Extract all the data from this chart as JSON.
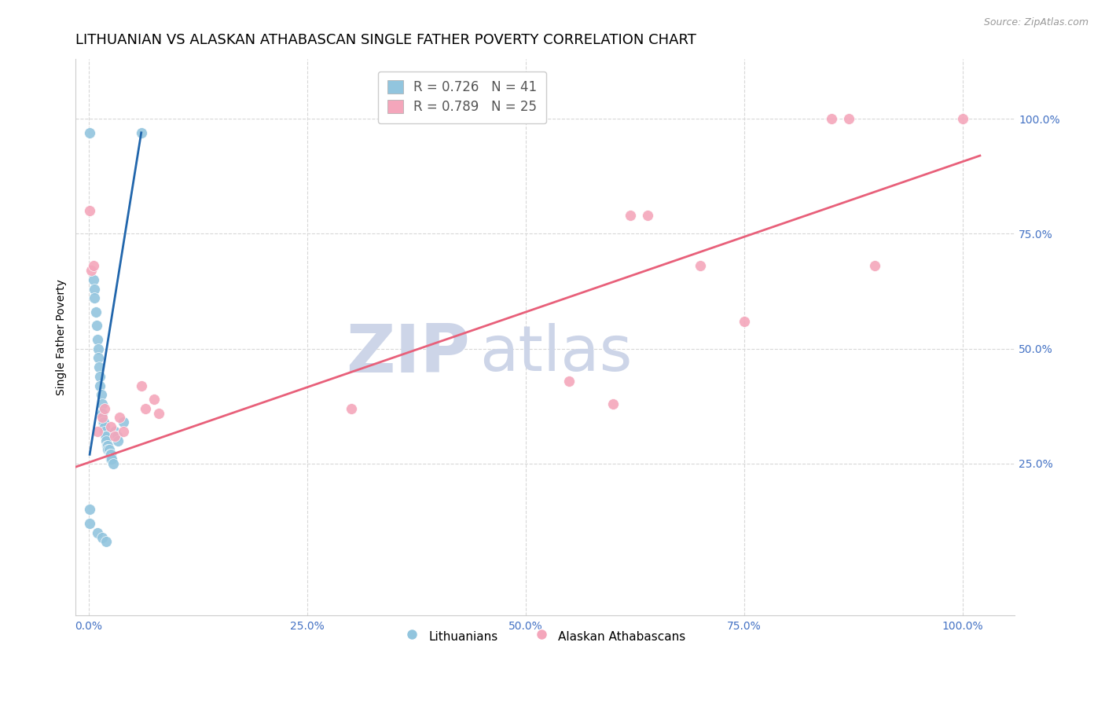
{
  "title": "LITHUANIAN VS ALASKAN ATHABASCAN SINGLE FATHER POVERTY CORRELATION CHART",
  "source": "Source: ZipAtlas.com",
  "ylabel": "Single Father Poverty",
  "watermark_zip": "ZIP",
  "watermark_atlas": "atlas",
  "blue_R": 0.726,
  "blue_N": 41,
  "pink_R": 0.789,
  "pink_N": 25,
  "blue_color": "#92c5de",
  "pink_color": "#f4a6bb",
  "blue_line_color": "#2166ac",
  "pink_line_color": "#e8607a",
  "legend_blue_label": "Lithuanians",
  "legend_pink_label": "Alaskan Athabascans",
  "blue_points": [
    [
      0.001,
      0.97
    ],
    [
      0.005,
      0.65
    ],
    [
      0.006,
      0.63
    ],
    [
      0.006,
      0.61
    ],
    [
      0.008,
      0.58
    ],
    [
      0.009,
      0.55
    ],
    [
      0.01,
      0.52
    ],
    [
      0.011,
      0.5
    ],
    [
      0.011,
      0.48
    ],
    [
      0.012,
      0.46
    ],
    [
      0.013,
      0.44
    ],
    [
      0.013,
      0.42
    ],
    [
      0.014,
      0.4
    ],
    [
      0.015,
      0.38
    ],
    [
      0.015,
      0.36
    ],
    [
      0.016,
      0.34
    ],
    [
      0.017,
      0.34
    ],
    [
      0.018,
      0.33
    ],
    [
      0.018,
      0.32
    ],
    [
      0.019,
      0.31
    ],
    [
      0.02,
      0.31
    ],
    [
      0.02,
      0.3
    ],
    [
      0.021,
      0.29
    ],
    [
      0.022,
      0.29
    ],
    [
      0.022,
      0.28
    ],
    [
      0.023,
      0.28
    ],
    [
      0.024,
      0.27
    ],
    [
      0.025,
      0.27
    ],
    [
      0.025,
      0.26
    ],
    [
      0.026,
      0.26
    ],
    [
      0.028,
      0.25
    ],
    [
      0.03,
      0.32
    ],
    [
      0.032,
      0.31
    ],
    [
      0.033,
      0.3
    ],
    [
      0.04,
      0.34
    ],
    [
      0.001,
      0.15
    ],
    [
      0.001,
      0.12
    ],
    [
      0.01,
      0.1
    ],
    [
      0.015,
      0.09
    ],
    [
      0.02,
      0.08
    ],
    [
      0.06,
      0.97
    ]
  ],
  "pink_points": [
    [
      0.001,
      0.8
    ],
    [
      0.003,
      0.67
    ],
    [
      0.005,
      0.68
    ],
    [
      0.01,
      0.32
    ],
    [
      0.015,
      0.35
    ],
    [
      0.018,
      0.37
    ],
    [
      0.025,
      0.33
    ],
    [
      0.03,
      0.31
    ],
    [
      0.035,
      0.35
    ],
    [
      0.04,
      0.32
    ],
    [
      0.06,
      0.42
    ],
    [
      0.065,
      0.37
    ],
    [
      0.075,
      0.39
    ],
    [
      0.08,
      0.36
    ],
    [
      0.3,
      0.37
    ],
    [
      0.55,
      0.43
    ],
    [
      0.6,
      0.38
    ],
    [
      0.62,
      0.79
    ],
    [
      0.64,
      0.79
    ],
    [
      0.7,
      0.68
    ],
    [
      0.75,
      0.56
    ],
    [
      0.85,
      1.0
    ],
    [
      0.87,
      1.0
    ],
    [
      0.9,
      0.68
    ],
    [
      1.0,
      1.0
    ]
  ],
  "blue_line": [
    [
      0.001,
      0.27
    ],
    [
      0.06,
      0.97
    ]
  ],
  "pink_line": [
    [
      -0.05,
      0.22
    ],
    [
      1.02,
      0.92
    ]
  ],
  "xlim": [
    -0.015,
    1.06
  ],
  "ylim": [
    -0.08,
    1.13
  ],
  "xticks": [
    0.0,
    0.25,
    0.5,
    0.75,
    1.0
  ],
  "xticklabels": [
    "0.0%",
    "25.0%",
    "50.0%",
    "75.0%",
    "100.0%"
  ],
  "yticks_right": [
    0.25,
    0.5,
    0.75,
    1.0
  ],
  "yticklabels_right": [
    "25.0%",
    "50.0%",
    "75.0%",
    "100.0%"
  ],
  "grid_color": "#d8d8d8",
  "background_color": "#ffffff",
  "title_fontsize": 13,
  "axis_label_fontsize": 10,
  "tick_fontsize": 10,
  "legend_fontsize": 12,
  "watermark_color": "#cdd5e8",
  "watermark_fontsize_zip": 62,
  "watermark_fontsize_atlas": 58,
  "right_tick_color": "#4472c4",
  "bottom_tick_color": "#4472c4"
}
